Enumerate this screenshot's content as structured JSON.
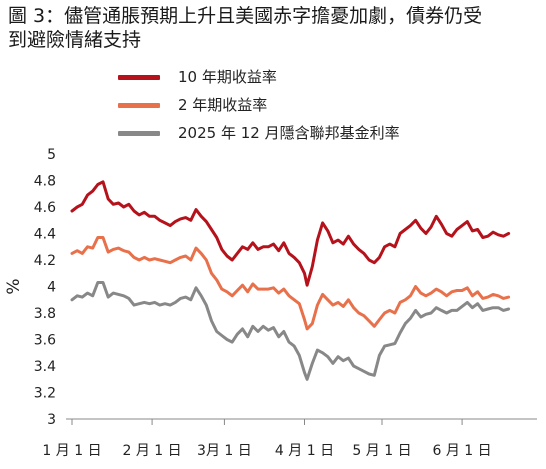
{
  "chart_data": {
    "type": "line",
    "title_line1": "圖 3：儘管通脹預期上升且美國赤字擔憂加劇，債券仍受",
    "title_line2": "到避險情緒支持",
    "ylabel": "%",
    "ylim": [
      3,
      5
    ],
    "yticks": [
      "3",
      "3.2",
      "3.4",
      "3.6",
      "3.8",
      "4",
      "4.2",
      "4.4",
      "4.6",
      "4.8",
      "5"
    ],
    "xlim": [
      0,
      180
    ],
    "xticks": [
      {
        "label": "1 月 1 日",
        "day": 0
      },
      {
        "label": "2 月 1 日",
        "day": 31
      },
      {
        "label": "3月 1 日",
        "day": 59
      },
      {
        "label": "4 月 1 日",
        "day": 90
      },
      {
        "label": "5 月 1 日",
        "day": 120
      },
      {
        "label": "6 月 1 日",
        "day": 151
      }
    ],
    "grid": false,
    "legend_position": "top-left",
    "series": [
      {
        "name": "10 年期收益率",
        "color": "#b5121b",
        "points": [
          [
            0,
            4.57
          ],
          [
            2,
            4.6
          ],
          [
            4,
            4.62
          ],
          [
            6,
            4.69
          ],
          [
            8,
            4.72
          ],
          [
            10,
            4.77
          ],
          [
            12,
            4.79
          ],
          [
            14,
            4.66
          ],
          [
            16,
            4.62
          ],
          [
            18,
            4.63
          ],
          [
            20,
            4.6
          ],
          [
            22,
            4.62
          ],
          [
            24,
            4.57
          ],
          [
            26,
            4.54
          ],
          [
            28,
            4.56
          ],
          [
            30,
            4.53
          ],
          [
            32,
            4.53
          ],
          [
            34,
            4.5
          ],
          [
            36,
            4.48
          ],
          [
            38,
            4.46
          ],
          [
            40,
            4.49
          ],
          [
            42,
            4.51
          ],
          [
            44,
            4.52
          ],
          [
            46,
            4.5
          ],
          [
            48,
            4.58
          ],
          [
            50,
            4.53
          ],
          [
            52,
            4.49
          ],
          [
            54,
            4.43
          ],
          [
            56,
            4.37
          ],
          [
            58,
            4.28
          ],
          [
            60,
            4.23
          ],
          [
            62,
            4.2
          ],
          [
            64,
            4.25
          ],
          [
            66,
            4.3
          ],
          [
            68,
            4.28
          ],
          [
            70,
            4.33
          ],
          [
            72,
            4.28
          ],
          [
            74,
            4.3
          ],
          [
            76,
            4.3
          ],
          [
            78,
            4.32
          ],
          [
            80,
            4.27
          ],
          [
            82,
            4.33
          ],
          [
            84,
            4.25
          ],
          [
            86,
            4.22
          ],
          [
            88,
            4.18
          ],
          [
            90,
            4.1
          ],
          [
            91,
            4.01
          ],
          [
            93,
            4.15
          ],
          [
            95,
            4.35
          ],
          [
            97,
            4.48
          ],
          [
            99,
            4.42
          ],
          [
            101,
            4.33
          ],
          [
            103,
            4.35
          ],
          [
            105,
            4.32
          ],
          [
            107,
            4.38
          ],
          [
            109,
            4.32
          ],
          [
            111,
            4.28
          ],
          [
            113,
            4.25
          ],
          [
            115,
            4.2
          ],
          [
            117,
            4.18
          ],
          [
            119,
            4.22
          ],
          [
            121,
            4.3
          ],
          [
            123,
            4.32
          ],
          [
            125,
            4.3
          ],
          [
            127,
            4.4
          ],
          [
            129,
            4.43
          ],
          [
            131,
            4.46
          ],
          [
            133,
            4.5
          ],
          [
            135,
            4.44
          ],
          [
            137,
            4.4
          ],
          [
            139,
            4.45
          ],
          [
            141,
            4.53
          ],
          [
            143,
            4.47
          ],
          [
            145,
            4.4
          ],
          [
            147,
            4.38
          ],
          [
            149,
            4.43
          ],
          [
            151,
            4.46
          ],
          [
            153,
            4.49
          ],
          [
            155,
            4.42
          ],
          [
            157,
            4.43
          ],
          [
            159,
            4.37
          ],
          [
            161,
            4.38
          ],
          [
            163,
            4.41
          ],
          [
            165,
            4.39
          ],
          [
            167,
            4.38
          ],
          [
            169,
            4.4
          ]
        ]
      },
      {
        "name": "2 年期收益率",
        "color": "#e8704a",
        "points": [
          [
            0,
            4.25
          ],
          [
            2,
            4.27
          ],
          [
            4,
            4.25
          ],
          [
            6,
            4.3
          ],
          [
            8,
            4.29
          ],
          [
            10,
            4.37
          ],
          [
            12,
            4.37
          ],
          [
            14,
            4.26
          ],
          [
            16,
            4.28
          ],
          [
            18,
            4.29
          ],
          [
            20,
            4.27
          ],
          [
            22,
            4.26
          ],
          [
            24,
            4.22
          ],
          [
            26,
            4.2
          ],
          [
            28,
            4.22
          ],
          [
            30,
            4.2
          ],
          [
            32,
            4.21
          ],
          [
            34,
            4.2
          ],
          [
            36,
            4.19
          ],
          [
            38,
            4.18
          ],
          [
            40,
            4.2
          ],
          [
            42,
            4.22
          ],
          [
            44,
            4.23
          ],
          [
            46,
            4.2
          ],
          [
            48,
            4.29
          ],
          [
            50,
            4.25
          ],
          [
            52,
            4.2
          ],
          [
            54,
            4.1
          ],
          [
            56,
            4.05
          ],
          [
            58,
            3.98
          ],
          [
            60,
            3.96
          ],
          [
            62,
            3.93
          ],
          [
            64,
            3.97
          ],
          [
            66,
            4.01
          ],
          [
            68,
            3.96
          ],
          [
            70,
            4.02
          ],
          [
            72,
            3.98
          ],
          [
            74,
            3.98
          ],
          [
            76,
            3.98
          ],
          [
            78,
            3.99
          ],
          [
            80,
            3.95
          ],
          [
            82,
            3.98
          ],
          [
            84,
            3.93
          ],
          [
            86,
            3.9
          ],
          [
            88,
            3.87
          ],
          [
            90,
            3.75
          ],
          [
            91,
            3.68
          ],
          [
            93,
            3.72
          ],
          [
            95,
            3.86
          ],
          [
            97,
            3.94
          ],
          [
            99,
            3.9
          ],
          [
            101,
            3.86
          ],
          [
            103,
            3.88
          ],
          [
            105,
            3.85
          ],
          [
            107,
            3.9
          ],
          [
            109,
            3.84
          ],
          [
            111,
            3.8
          ],
          [
            113,
            3.78
          ],
          [
            115,
            3.74
          ],
          [
            117,
            3.7
          ],
          [
            119,
            3.75
          ],
          [
            121,
            3.8
          ],
          [
            123,
            3.82
          ],
          [
            125,
            3.8
          ],
          [
            127,
            3.88
          ],
          [
            129,
            3.9
          ],
          [
            131,
            3.93
          ],
          [
            133,
            4.0
          ],
          [
            135,
            3.95
          ],
          [
            137,
            3.93
          ],
          [
            139,
            3.95
          ],
          [
            141,
            3.98
          ],
          [
            143,
            3.96
          ],
          [
            145,
            3.93
          ],
          [
            147,
            3.96
          ],
          [
            149,
            3.97
          ],
          [
            151,
            3.97
          ],
          [
            153,
            3.99
          ],
          [
            155,
            3.93
          ],
          [
            157,
            3.96
          ],
          [
            159,
            3.91
          ],
          [
            161,
            3.92
          ],
          [
            163,
            3.94
          ],
          [
            165,
            3.93
          ],
          [
            167,
            3.91
          ],
          [
            169,
            3.92
          ]
        ]
      },
      {
        "name": "2025 年 12 月隱含聯邦基金利率",
        "color": "#888888",
        "points": [
          [
            0,
            3.9
          ],
          [
            2,
            3.93
          ],
          [
            4,
            3.92
          ],
          [
            6,
            3.95
          ],
          [
            8,
            3.93
          ],
          [
            10,
            4.03
          ],
          [
            12,
            4.03
          ],
          [
            14,
            3.92
          ],
          [
            16,
            3.95
          ],
          [
            18,
            3.94
          ],
          [
            20,
            3.93
          ],
          [
            22,
            3.91
          ],
          [
            24,
            3.86
          ],
          [
            26,
            3.87
          ],
          [
            28,
            3.88
          ],
          [
            30,
            3.87
          ],
          [
            32,
            3.88
          ],
          [
            34,
            3.86
          ],
          [
            36,
            3.87
          ],
          [
            38,
            3.86
          ],
          [
            40,
            3.88
          ],
          [
            42,
            3.91
          ],
          [
            44,
            3.92
          ],
          [
            46,
            3.9
          ],
          [
            48,
            3.99
          ],
          [
            50,
            3.93
          ],
          [
            52,
            3.86
          ],
          [
            54,
            3.74
          ],
          [
            56,
            3.66
          ],
          [
            58,
            3.63
          ],
          [
            60,
            3.6
          ],
          [
            62,
            3.58
          ],
          [
            64,
            3.64
          ],
          [
            66,
            3.68
          ],
          [
            68,
            3.62
          ],
          [
            70,
            3.7
          ],
          [
            72,
            3.66
          ],
          [
            74,
            3.7
          ],
          [
            76,
            3.67
          ],
          [
            78,
            3.69
          ],
          [
            80,
            3.62
          ],
          [
            82,
            3.66
          ],
          [
            84,
            3.58
          ],
          [
            86,
            3.55
          ],
          [
            88,
            3.48
          ],
          [
            90,
            3.35
          ],
          [
            91,
            3.3
          ],
          [
            93,
            3.42
          ],
          [
            95,
            3.52
          ],
          [
            97,
            3.5
          ],
          [
            99,
            3.47
          ],
          [
            101,
            3.42
          ],
          [
            103,
            3.47
          ],
          [
            105,
            3.44
          ],
          [
            107,
            3.46
          ],
          [
            109,
            3.4
          ],
          [
            111,
            3.38
          ],
          [
            113,
            3.36
          ],
          [
            115,
            3.34
          ],
          [
            117,
            3.33
          ],
          [
            119,
            3.48
          ],
          [
            121,
            3.55
          ],
          [
            123,
            3.56
          ],
          [
            125,
            3.57
          ],
          [
            127,
            3.65
          ],
          [
            129,
            3.72
          ],
          [
            131,
            3.76
          ],
          [
            133,
            3.82
          ],
          [
            135,
            3.77
          ],
          [
            137,
            3.79
          ],
          [
            139,
            3.8
          ],
          [
            141,
            3.84
          ],
          [
            143,
            3.82
          ],
          [
            145,
            3.8
          ],
          [
            147,
            3.82
          ],
          [
            149,
            3.82
          ],
          [
            151,
            3.85
          ],
          [
            153,
            3.88
          ],
          [
            155,
            3.84
          ],
          [
            157,
            3.87
          ],
          [
            159,
            3.82
          ],
          [
            161,
            3.83
          ],
          [
            163,
            3.84
          ],
          [
            165,
            3.84
          ],
          [
            167,
            3.82
          ],
          [
            169,
            3.83
          ]
        ]
      }
    ]
  }
}
